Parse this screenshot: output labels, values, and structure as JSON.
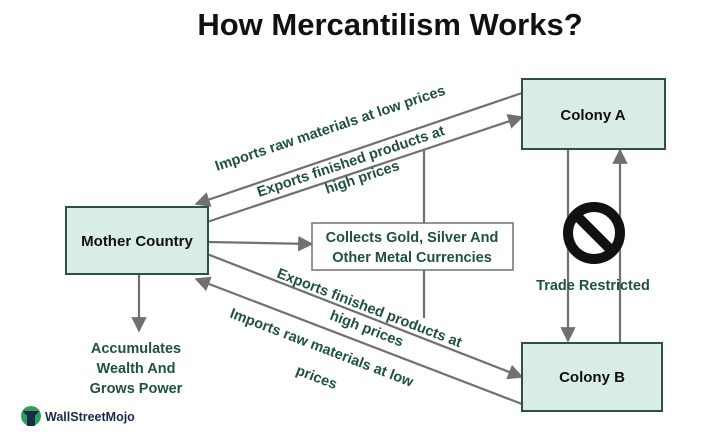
{
  "title": "How Mercantilism Works?",
  "nodes": {
    "mother_country": "Mother Country",
    "colony_a": "Colony A",
    "colony_b": "Colony B",
    "collects": [
      "Collects Gold, Silver And",
      "Other Metal Currencies"
    ]
  },
  "edges": {
    "imports_from_a": "Imports raw materials at low prices",
    "exports_to_a": [
      "Exports finished products at",
      "high prices"
    ],
    "exports_to_b": [
      "Exports finished products at",
      "high prices"
    ],
    "imports_from_b": [
      "Imports raw materials at low",
      "prices"
    ]
  },
  "trade_restricted": "Trade Restricted",
  "accumulates": [
    "Accumulates",
    "Wealth And",
    "Grows Power"
  ],
  "logo": {
    "text": "WallStreetMojo",
    "icon": "wallstreetmojo-logo-icon"
  },
  "colors": {
    "box_fill": "#d9ede4",
    "box_stroke": "#2b5245",
    "arrow": "#707070",
    "label_green": "#1f5140"
  }
}
